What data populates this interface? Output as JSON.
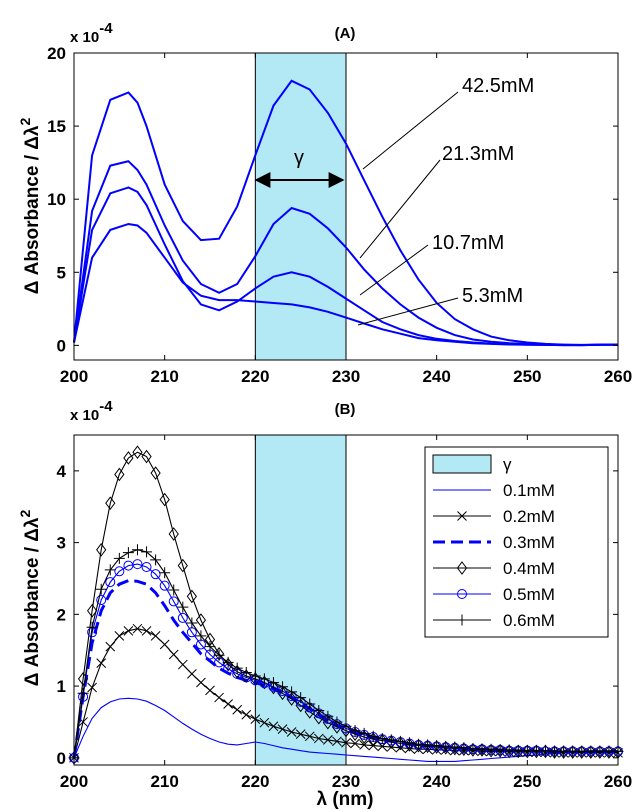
{
  "chart_data": [
    {
      "type": "line",
      "title": "(A)",
      "ylabel": "Δ Absorbance / Δλ²",
      "ylabel_main": "Δ Absorbance / Δλ",
      "ylabel_sup": "2",
      "y_multiplier": "x 10",
      "y_multiplier_exp": "-4",
      "xlim": [
        200,
        260
      ],
      "ylim": [
        -1,
        20
      ],
      "xticks": [
        "200",
        "210",
        "220",
        "230",
        "240",
        "250",
        "260"
      ],
      "yticks": [
        "0",
        "5",
        "10",
        "15",
        "20"
      ],
      "grid": false,
      "shaded_region": {
        "x": [
          220,
          230
        ],
        "label": "γ",
        "color": "#b3e8f5"
      },
      "series": [
        {
          "name": "42.5mM",
          "x": [
            200,
            202,
            204,
            206,
            207,
            208,
            210,
            212,
            214,
            216,
            218,
            220,
            222,
            224,
            226,
            228,
            230,
            232,
            234,
            236,
            238,
            240,
            242,
            244,
            246,
            248,
            250,
            252,
            254,
            256,
            258,
            260
          ],
          "y": [
            0.2,
            13,
            16.8,
            17.3,
            16.6,
            15,
            11,
            8.5,
            7.2,
            7.3,
            9.5,
            13,
            16.4,
            18.1,
            17.5,
            15.9,
            13.8,
            11.3,
            8.8,
            6.5,
            4.5,
            2.9,
            1.8,
            1.1,
            0.6,
            0.35,
            0.2,
            0.1,
            0.05,
            0.03,
            0.05,
            0.05
          ]
        },
        {
          "name": "21.3mM",
          "x": [
            200,
            202,
            204,
            206,
            207,
            208,
            210,
            212,
            214,
            216,
            218,
            220,
            222,
            224,
            226,
            228,
            230,
            232,
            234,
            236,
            238,
            240,
            242,
            244,
            246,
            248,
            250,
            252,
            254,
            256,
            258,
            260
          ],
          "y": [
            0.2,
            9.2,
            12.3,
            12.6,
            12,
            11,
            8.2,
            5.8,
            4.2,
            3.6,
            4.2,
            6.1,
            8.3,
            9.4,
            9,
            8,
            6.7,
            5.2,
            3.9,
            2.8,
            1.9,
            1.2,
            0.7,
            0.4,
            0.25,
            0.15,
            0.1,
            0.05,
            0.03,
            0.02,
            0.05,
            0.05
          ]
        },
        {
          "name": "10.7mM",
          "x": [
            200,
            202,
            204,
            206,
            207,
            208,
            210,
            212,
            214,
            216,
            218,
            220,
            222,
            224,
            226,
            228,
            230,
            232,
            234,
            236,
            238,
            240,
            242,
            244,
            246,
            248,
            250,
            252,
            254,
            256,
            258,
            260
          ],
          "y": [
            0.2,
            7.9,
            10.4,
            10.8,
            10.5,
            9.6,
            6.9,
            4.4,
            2.8,
            2.4,
            3,
            3.9,
            4.7,
            5,
            4.7,
            4,
            3.2,
            2.4,
            1.6,
            1.1,
            0.7,
            0.45,
            0.3,
            0.2,
            0.12,
            0.08,
            0.05,
            0.03,
            0.02,
            0.02,
            0.04,
            0.05
          ]
        },
        {
          "name": "5.3mM",
          "x": [
            200,
            202,
            204,
            206,
            207,
            208,
            210,
            212,
            214,
            216,
            218,
            220,
            222,
            224,
            226,
            228,
            230,
            232,
            234,
            236,
            238,
            240,
            242,
            244,
            246,
            248,
            250,
            252,
            254,
            256,
            258,
            260
          ],
          "y": [
            0.2,
            6,
            7.9,
            8.3,
            8.2,
            7.7,
            6,
            4.3,
            3.4,
            3.1,
            3.1,
            3,
            2.9,
            2.8,
            2.6,
            2.3,
            1.9,
            1.5,
            1.1,
            0.8,
            0.5,
            0.35,
            0.25,
            0.15,
            0.1,
            0.06,
            0.04,
            0.03,
            0.02,
            0.02,
            0.03,
            0.04
          ]
        }
      ]
    },
    {
      "type": "line",
      "title": "(B)",
      "xlabel": "λ (nm)",
      "ylabel": "Δ Absorbance / Δλ²",
      "ylabel_main": "Δ Absorbance / Δλ",
      "ylabel_sup": "2",
      "y_multiplier": "x 10",
      "y_multiplier_exp": "-4",
      "xlim": [
        200,
        260
      ],
      "ylim": [
        -0.1,
        4.5
      ],
      "xticks": [
        "200",
        "210",
        "220",
        "230",
        "240",
        "250",
        "260"
      ],
      "yticks": [
        "0",
        "1",
        "2",
        "3",
        "4"
      ],
      "grid": false,
      "legend_position": "top-right",
      "shaded_region": {
        "x": [
          220,
          230
        ],
        "label": "γ",
        "color": "#b3e8f5"
      },
      "x": [
        200,
        201,
        202,
        203,
        204,
        205,
        206,
        207,
        208,
        209,
        210,
        211,
        212,
        213,
        214,
        215,
        216,
        217,
        218,
        219,
        220,
        221,
        222,
        223,
        224,
        225,
        226,
        227,
        228,
        229,
        230,
        231,
        232,
        233,
        234,
        235,
        236,
        237,
        238,
        239,
        240,
        241,
        242,
        243,
        244,
        245,
        246,
        247,
        248,
        249,
        250,
        251,
        252,
        253,
        254,
        255,
        256,
        257,
        258,
        259,
        260
      ],
      "series": [
        {
          "name": "0.1mM",
          "color": "#0000ff",
          "dash": "solid",
          "marker": "none",
          "values": [
            0,
            0.3,
            0.55,
            0.7,
            0.78,
            0.82,
            0.83,
            0.82,
            0.79,
            0.73,
            0.66,
            0.57,
            0.48,
            0.4,
            0.33,
            0.27,
            0.22,
            0.19,
            0.18,
            0.2,
            0.22,
            0.2,
            0.17,
            0.14,
            0.12,
            0.1,
            0.08,
            0.07,
            0.06,
            0.05,
            0.04,
            0.03,
            0.02,
            0.01,
            0,
            -0.01,
            -0.02,
            -0.03,
            -0.04,
            -0.05,
            -0.05,
            -0.05,
            -0.05,
            -0.04,
            -0.03,
            -0.02,
            -0.01,
            0,
            0.01,
            0.02,
            0.03,
            0.04,
            0.05,
            0.06,
            0.07,
            0.08,
            0.09,
            0.1,
            0.1,
            0.1,
            0.1
          ]
        },
        {
          "name": "0.2mM",
          "color": "#000000",
          "dash": "solid",
          "marker": "x",
          "values": [
            0,
            0.5,
            0.98,
            1.32,
            1.55,
            1.7,
            1.77,
            1.8,
            1.77,
            1.7,
            1.58,
            1.44,
            1.3,
            1.17,
            1.05,
            0.94,
            0.84,
            0.75,
            0.67,
            0.6,
            0.54,
            0.49,
            0.44,
            0.4,
            0.36,
            0.33,
            0.3,
            0.27,
            0.25,
            0.23,
            0.21,
            0.2,
            0.18,
            0.17,
            0.16,
            0.15,
            0.14,
            0.13,
            0.12,
            0.12,
            0.11,
            0.11,
            0.1,
            0.1,
            0.1,
            0.09,
            0.09,
            0.09,
            0.08,
            0.08,
            0.08,
            0.08,
            0.08,
            0.07,
            0.07,
            0.07,
            0.07,
            0.07,
            0.07,
            0.07,
            0.07
          ]
        },
        {
          "name": "0.3mM",
          "color": "#0000ff",
          "dash": "dashed",
          "marker": "none",
          "values": [
            0,
            0.85,
            1.6,
            2.05,
            2.3,
            2.42,
            2.47,
            2.46,
            2.42,
            2.3,
            2.12,
            1.92,
            1.75,
            1.6,
            1.45,
            1.35,
            1.25,
            1.18,
            1.12,
            1.08,
            1.05,
            1.01,
            0.96,
            0.9,
            0.84,
            0.76,
            0.68,
            0.6,
            0.52,
            0.45,
            0.4,
            0.35,
            0.31,
            0.28,
            0.25,
            0.23,
            0.21,
            0.19,
            0.18,
            0.17,
            0.16,
            0.15,
            0.14,
            0.13,
            0.12,
            0.12,
            0.11,
            0.11,
            0.1,
            0.1,
            0.1,
            0.09,
            0.09,
            0.09,
            0.09,
            0.08,
            0.08,
            0.08,
            0.08,
            0.08,
            0.08
          ]
        },
        {
          "name": "0.4mM",
          "color": "#000000",
          "dash": "solid",
          "marker": "diamond",
          "values": [
            0,
            1.1,
            2.05,
            2.9,
            3.55,
            3.95,
            4.18,
            4.26,
            4.2,
            3.97,
            3.6,
            3.12,
            2.68,
            2.25,
            1.92,
            1.65,
            1.45,
            1.3,
            1.2,
            1.14,
            1.1,
            1.05,
            0.98,
            0.9,
            0.82,
            0.73,
            0.64,
            0.56,
            0.49,
            0.43,
            0.38,
            0.33,
            0.29,
            0.26,
            0.24,
            0.22,
            0.2,
            0.18,
            0.17,
            0.16,
            0.15,
            0.14,
            0.13,
            0.12,
            0.11,
            0.11,
            0.1,
            0.1,
            0.09,
            0.09,
            0.09,
            0.09,
            0.09,
            0.08,
            0.08,
            0.08,
            0.08,
            0.08,
            0.08,
            0.08,
            0.08
          ]
        },
        {
          "name": "0.5mM",
          "color": "#0000ff",
          "dash": "solid",
          "marker": "circle",
          "values": [
            0,
            0.85,
            1.75,
            2.2,
            2.45,
            2.6,
            2.68,
            2.7,
            2.66,
            2.56,
            2.4,
            2.18,
            1.95,
            1.75,
            1.58,
            1.44,
            1.33,
            1.24,
            1.17,
            1.12,
            1.08,
            1.04,
            0.99,
            0.93,
            0.86,
            0.78,
            0.7,
            0.62,
            0.54,
            0.47,
            0.41,
            0.36,
            0.32,
            0.29,
            0.26,
            0.24,
            0.22,
            0.2,
            0.18,
            0.17,
            0.16,
            0.15,
            0.14,
            0.13,
            0.12,
            0.12,
            0.11,
            0.11,
            0.1,
            0.1,
            0.1,
            0.1,
            0.09,
            0.09,
            0.09,
            0.09,
            0.09,
            0.09,
            0.09,
            0.09,
            0.09
          ]
        },
        {
          "name": "0.6mM",
          "color": "#000000",
          "dash": "solid",
          "marker": "plus",
          "values": [
            0,
            0.9,
            1.82,
            2.35,
            2.62,
            2.78,
            2.86,
            2.9,
            2.87,
            2.76,
            2.58,
            2.34,
            2.1,
            1.88,
            1.7,
            1.55,
            1.43,
            1.33,
            1.25,
            1.19,
            1.14,
            1.1,
            1.05,
            0.99,
            0.92,
            0.84,
            0.75,
            0.66,
            0.58,
            0.5,
            0.44,
            0.38,
            0.34,
            0.3,
            0.27,
            0.25,
            0.23,
            0.21,
            0.19,
            0.18,
            0.17,
            0.16,
            0.15,
            0.14,
            0.13,
            0.12,
            0.12,
            0.11,
            0.11,
            0.1,
            0.1,
            0.1,
            0.1,
            0.09,
            0.09,
            0.09,
            0.09,
            0.09,
            0.09,
            0.09,
            0.09
          ]
        }
      ]
    }
  ]
}
